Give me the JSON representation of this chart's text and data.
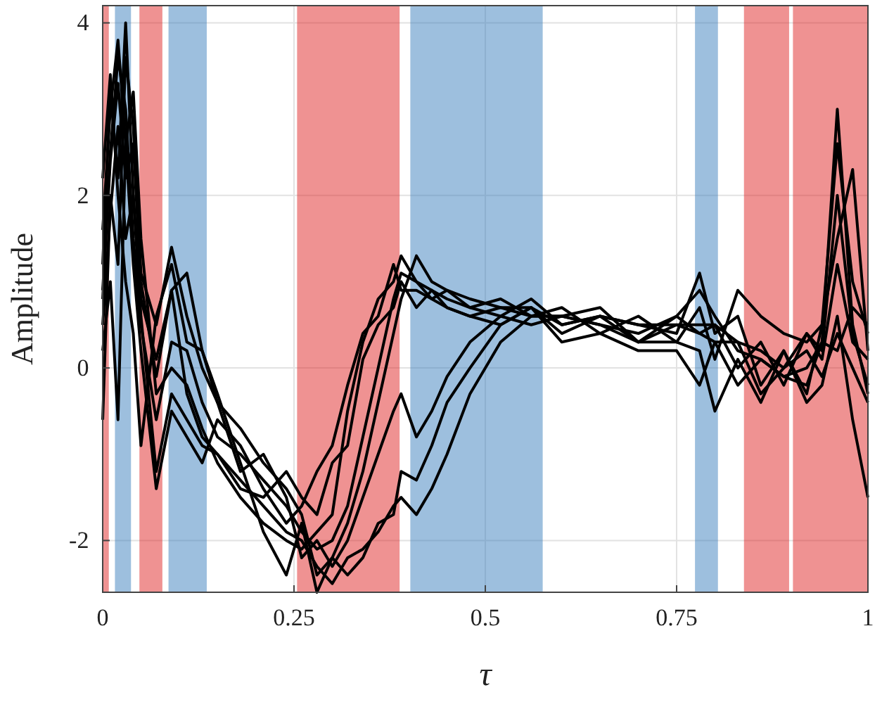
{
  "chart_data": {
    "type": "line",
    "xlabel": "τ",
    "ylabel": "Amplitude",
    "x": [
      0,
      0.01,
      0.02,
      0.03,
      0.04,
      0.05,
      0.07,
      0.09,
      0.11,
      0.13,
      0.15,
      0.18,
      0.21,
      0.24,
      0.26,
      0.28,
      0.3,
      0.32,
      0.34,
      0.36,
      0.38,
      0.39,
      0.41,
      0.43,
      0.45,
      0.48,
      0.52,
      0.56,
      0.6,
      0.65,
      0.7,
      0.75,
      0.78,
      0.8,
      0.83,
      0.86,
      0.89,
      0.92,
      0.94,
      0.96,
      0.98,
      1.0
    ],
    "series": [
      {
        "color": "#000000",
        "values": [
          0.8,
          2.5,
          3.6,
          3.0,
          1.5,
          0.5,
          -0.6,
          0.3,
          0.2,
          -0.4,
          -0.8,
          -1.0,
          -1.3,
          -1.6,
          -1.9,
          -2.1,
          -2.0,
          -1.6,
          -0.8,
          0.0,
          0.8,
          1.1,
          1.0,
          0.9,
          0.8,
          0.7,
          0.8,
          0.6,
          0.6,
          0.5,
          0.4,
          0.6,
          0.9,
          0.6,
          0.2,
          0.1,
          -0.1,
          0.0,
          0.3,
          3.0,
          0.5,
          -0.3
        ]
      },
      {
        "color": "#000000",
        "values": [
          1.2,
          3.2,
          2.2,
          4.0,
          2.0,
          0.8,
          0.1,
          0.9,
          1.1,
          0.2,
          -0.4,
          -0.7,
          -1.1,
          -1.4,
          -1.7,
          -2.4,
          -2.2,
          -1.8,
          -1.2,
          -0.4,
          0.4,
          0.8,
          1.3,
          1.0,
          0.9,
          0.8,
          0.7,
          0.7,
          0.5,
          0.6,
          0.5,
          0.4,
          1.1,
          0.4,
          0.6,
          -0.2,
          0.2,
          -0.3,
          0.5,
          1.5,
          2.3,
          0.2
        ]
      },
      {
        "color": "#000000",
        "values": [
          0.5,
          1.8,
          2.8,
          1.5,
          2.0,
          0.6,
          -1.2,
          -0.3,
          -0.6,
          -0.9,
          -1.0,
          -1.3,
          -1.6,
          -1.9,
          -2.0,
          -2.3,
          -2.5,
          -2.2,
          -2.1,
          -1.9,
          -1.6,
          -1.5,
          -1.7,
          -1.4,
          -1.0,
          -0.3,
          0.3,
          0.6,
          0.6,
          0.5,
          0.3,
          0.3,
          0.2,
          -0.5,
          0.1,
          -0.4,
          0.2,
          -0.4,
          -0.2,
          0.6,
          -0.6,
          -1.5
        ]
      },
      {
        "color": "#000000",
        "values": [
          1.6,
          3.0,
          3.8,
          2.6,
          1.2,
          0.2,
          -1.4,
          -0.5,
          -0.8,
          -1.1,
          -0.6,
          -0.9,
          -1.4,
          -1.8,
          -1.6,
          -1.2,
          -0.9,
          -0.2,
          0.4,
          0.6,
          1.2,
          0.9,
          0.9,
          0.8,
          0.7,
          0.6,
          0.7,
          0.6,
          0.7,
          0.4,
          0.6,
          0.3,
          0.7,
          0.1,
          0.9,
          0.6,
          0.4,
          0.3,
          0.5,
          2.6,
          1.0,
          0.4
        ]
      },
      {
        "color": "#000000",
        "values": [
          -0.6,
          2.0,
          1.2,
          3.6,
          2.8,
          1.1,
          0.5,
          1.4,
          0.6,
          0.0,
          -0.4,
          -1.2,
          -1.0,
          -1.5,
          -2.2,
          -2.0,
          -2.3,
          -2.0,
          -1.5,
          -1.0,
          -0.5,
          -0.3,
          -0.8,
          -0.5,
          -0.1,
          0.3,
          0.6,
          0.8,
          0.5,
          0.6,
          0.5,
          0.5,
          0.4,
          0.3,
          0.3,
          -0.3,
          0.0,
          0.2,
          -0.1,
          0.4,
          0.0,
          -0.4
        ]
      },
      {
        "color": "#000000",
        "values": [
          0.2,
          1.0,
          -0.6,
          2.6,
          3.2,
          1.5,
          -0.3,
          0.0,
          -0.2,
          -0.7,
          -1.1,
          -1.5,
          -1.8,
          -2.0,
          -2.1,
          -1.9,
          -1.7,
          -0.5,
          0.3,
          0.8,
          1.0,
          1.3,
          1.0,
          0.8,
          0.9,
          0.7,
          0.6,
          0.5,
          0.6,
          0.7,
          0.3,
          0.6,
          0.4,
          0.5,
          0.0,
          0.3,
          -0.2,
          0.4,
          0.1,
          1.2,
          0.3,
          0.1
        ]
      },
      {
        "color": "#000000",
        "values": [
          2.2,
          3.4,
          2.0,
          1.0,
          0.4,
          -0.9,
          0.6,
          1.2,
          0.3,
          0.2,
          -0.3,
          -1.1,
          -1.9,
          -2.4,
          -1.8,
          -2.6,
          -2.2,
          -2.4,
          -2.2,
          -1.8,
          -1.7,
          -1.2,
          -1.3,
          -0.9,
          -0.4,
          0.0,
          0.5,
          0.7,
          0.3,
          0.4,
          0.2,
          0.2,
          -0.2,
          0.3,
          -0.2,
          0.1,
          -0.1,
          -0.2,
          0.3,
          0.2,
          0.7,
          0.5
        ]
      },
      {
        "color": "#000000",
        "values": [
          0.9,
          2.4,
          3.3,
          2.2,
          2.6,
          1.0,
          -0.1,
          0.9,
          -0.3,
          -0.8,
          -1.0,
          -1.4,
          -1.5,
          -1.2,
          -1.5,
          -1.7,
          -1.1,
          -0.9,
          0.1,
          0.5,
          0.7,
          1.0,
          0.7,
          0.9,
          0.7,
          0.6,
          0.5,
          0.7,
          0.4,
          0.6,
          0.3,
          0.5,
          0.5,
          0.5,
          0.3,
          0.2,
          0.0,
          0.4,
          0.2,
          2.0,
          0.4,
          -0.2
        ]
      }
    ],
    "bands": [
      {
        "axis": "x",
        "from": 0,
        "to": 0.008,
        "color": "#de1b1b"
      },
      {
        "axis": "x",
        "from": 0.016,
        "to": 0.037,
        "color": "#327ab9"
      },
      {
        "axis": "x",
        "from": 0.048,
        "to": 0.078,
        "color": "#de1b1b"
      },
      {
        "axis": "x",
        "from": 0.086,
        "to": 0.136,
        "color": "#327ab9"
      },
      {
        "axis": "x",
        "from": 0.254,
        "to": 0.388,
        "color": "#de1b1b"
      },
      {
        "axis": "x",
        "from": 0.402,
        "to": 0.575,
        "color": "#327ab9"
      },
      {
        "axis": "x",
        "from": 0.774,
        "to": 0.804,
        "color": "#327ab9"
      },
      {
        "axis": "x",
        "from": 0.838,
        "to": 0.897,
        "color": "#de1b1b"
      },
      {
        "axis": "x",
        "from": 0.902,
        "to": 1.0,
        "color": "#de1b1b"
      }
    ],
    "xlim": [
      0,
      1
    ],
    "xticks": [
      0,
      0.25,
      0.5,
      0.75,
      1
    ],
    "ylim": [
      -2.6,
      4.2
    ],
    "yticks": [
      -2,
      0,
      2,
      4
    ],
    "grid": true,
    "line_style": "solid",
    "marker": "none"
  }
}
